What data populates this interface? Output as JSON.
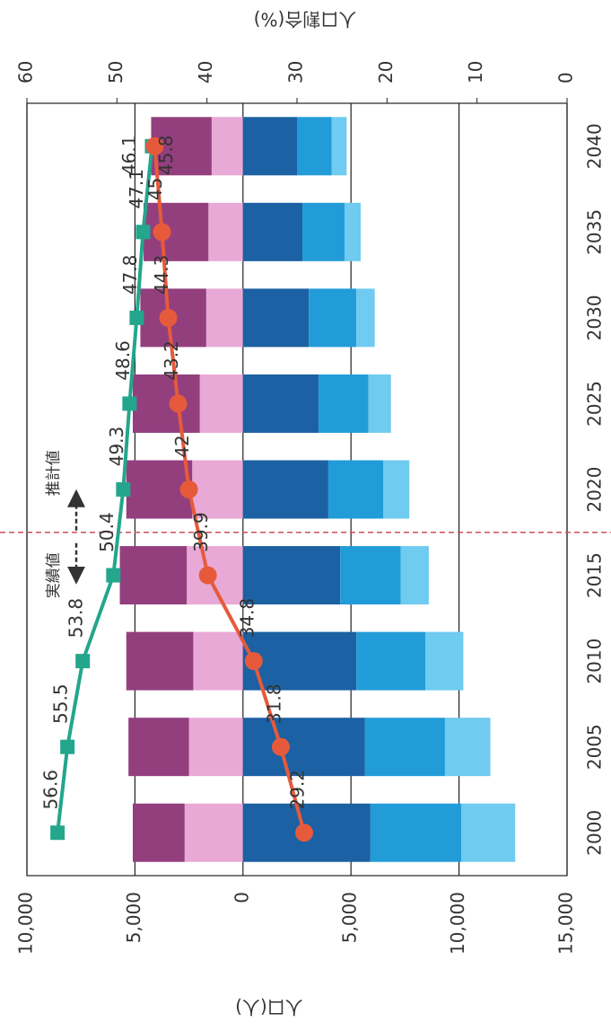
{
  "chart_data": {
    "type": "bar",
    "categories": [
      "2000",
      "2005",
      "2010",
      "2015",
      "2020",
      "2025",
      "2030",
      "2035",
      "2040"
    ],
    "series": [
      {
        "type": "bar",
        "color": "#e8a9d6",
        "values": [
          2700,
          2500,
          2300,
          2600,
          2350,
          2000,
          1700,
          1600,
          1450
        ]
      },
      {
        "type": "bar",
        "color": "#933f7e",
        "values": [
          2400,
          2800,
          3100,
          3100,
          3050,
          3100,
          3050,
          3000,
          2800
        ]
      },
      {
        "type": "bar",
        "color": "#1b61a3",
        "values": [
          -5900,
          -5650,
          -5250,
          -4500,
          -3950,
          -3500,
          -3050,
          -2750,
          -2500
        ]
      },
      {
        "type": "bar",
        "color": "#229cd8",
        "values": [
          -4200,
          -3700,
          -3200,
          -2800,
          -2550,
          -2300,
          -2200,
          -1950,
          -1600
        ]
      },
      {
        "type": "bar",
        "color": "#6fcbef",
        "values": [
          -2500,
          -2100,
          -1750,
          -1300,
          -1200,
          -1050,
          -850,
          -750,
          -700
        ]
      },
      {
        "type": "line",
        "axis": "y2",
        "color": "#23a68c",
        "marker": "square",
        "values": [
          56.6,
          55.5,
          53.8,
          50.4,
          49.3,
          48.6,
          47.8,
          47.1,
          46.1
        ]
      },
      {
        "type": "line",
        "axis": "y2",
        "color": "#e65a3b",
        "marker": "circle",
        "values": [
          29.2,
          31.8,
          34.8,
          39.9,
          42.0,
          43.2,
          44.3,
          45.0,
          45.8
        ]
      }
    ],
    "ylabel": "人口(人)",
    "y2label": "人口割合(%)",
    "ylim": [
      -15000,
      10000
    ],
    "yticks": [
      {
        "value": 10000,
        "label": "10,000"
      },
      {
        "value": 5000,
        "label": "5,000"
      },
      0,
      {
        "value": -5000,
        "label": "5,000"
      },
      {
        "value": -10000,
        "label": "10,000"
      },
      {
        "value": -15000,
        "label": "15,000"
      }
    ],
    "y2lim": [
      0,
      60
    ],
    "y2ticks": [
      0,
      10,
      20,
      30,
      40,
      50,
      60
    ],
    "grid": true,
    "annotations": [
      "実績値",
      "推計値"
    ]
  }
}
